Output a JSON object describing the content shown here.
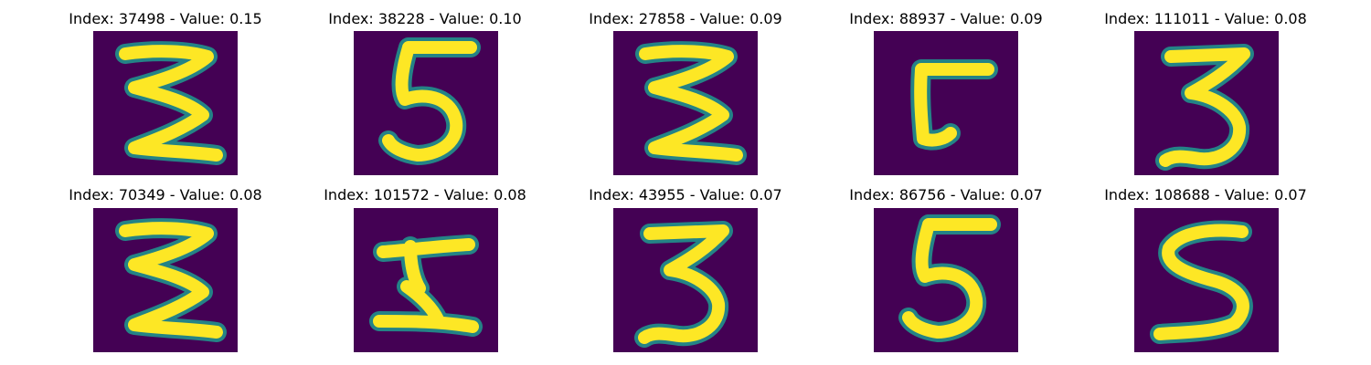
{
  "colors": {
    "background": "#440154",
    "glow": "#21918c",
    "stroke": "#fde725"
  },
  "panels": [
    {
      "label": "Index: 37498 - Value: 0.15",
      "index": 37498,
      "value": 0.15,
      "glyph": "zig-zag-3"
    },
    {
      "label": "Index: 38228 - Value: 0.10",
      "index": 38228,
      "value": 0.1,
      "glyph": "5"
    },
    {
      "label": "Index: 27858 - Value: 0.09",
      "index": 27858,
      "value": 0.09,
      "glyph": "zig-zag-3"
    },
    {
      "label": "Index: 88937 - Value: 0.09",
      "index": 88937,
      "value": 0.09,
      "glyph": "L-hook"
    },
    {
      "label": "Index: 111011 - Value: 0.08",
      "index": 111011,
      "value": 0.08,
      "glyph": "3"
    },
    {
      "label": "Index: 70349 - Value: 0.08",
      "index": 70349,
      "value": 0.08,
      "glyph": "zig-zag-3"
    },
    {
      "label": "Index: 101572 - Value: 0.08",
      "index": 101572,
      "value": 0.08,
      "glyph": "H-shape"
    },
    {
      "label": "Index: 43955 - Value: 0.07",
      "index": 43955,
      "value": 0.07,
      "glyph": "3"
    },
    {
      "label": "Index: 86756 - Value: 0.07",
      "index": 86756,
      "value": 0.07,
      "glyph": "5"
    },
    {
      "label": "Index: 108688 - Value: 0.07",
      "index": 108688,
      "value": 0.07,
      "glyph": "S"
    }
  ]
}
